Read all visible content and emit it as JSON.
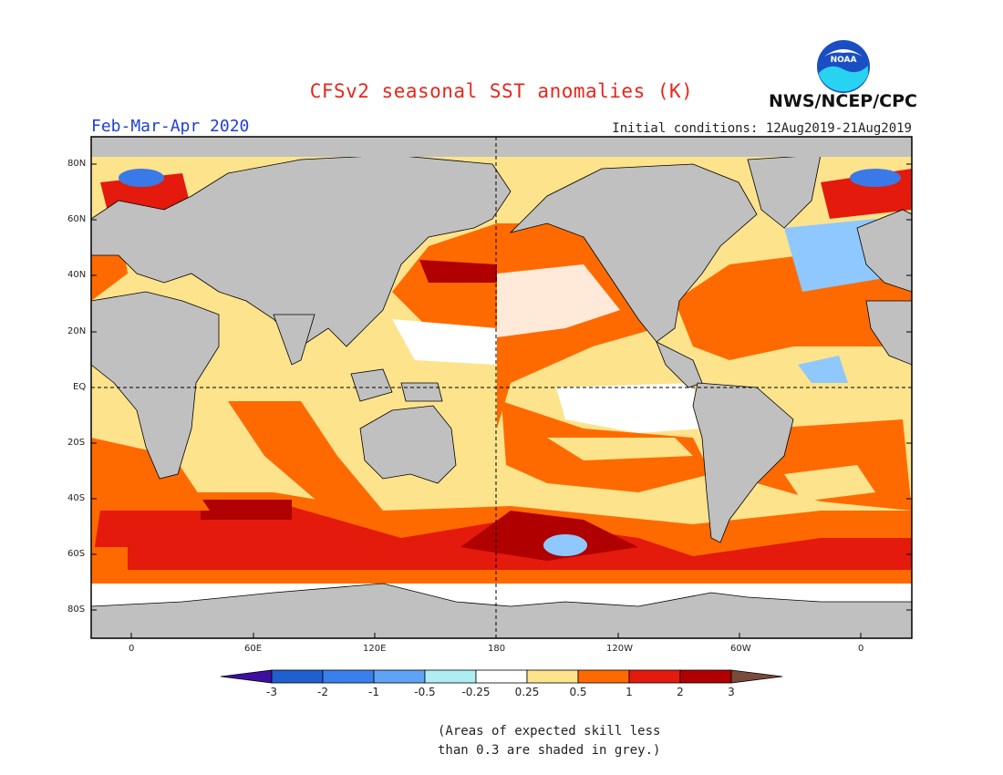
{
  "header": {
    "title": "CFSv2 seasonal SST anomalies (K)",
    "season": "Feb-Mar-Apr 2020",
    "initial_conditions": "Initial conditions: 12Aug2019-21Aug2019",
    "agency": "NWS/NCEP/CPC",
    "logo_text": "NOAA"
  },
  "map": {
    "lat_labels": [
      "80N",
      "60N",
      "40N",
      "20N",
      "EQ",
      "20S",
      "40S",
      "60S",
      "80S"
    ],
    "lon_labels": [
      "0",
      "60E",
      "120E",
      "180",
      "120W",
      "60W",
      "0"
    ],
    "colors": {
      "land": "#c0c0c0",
      "near_zero": "#ffffff",
      "pale_yellow": "#fde38c",
      "orange": "#ff6a00",
      "red": "#e31a0c",
      "dark_red": "#b00000",
      "light_blue": "#8ec8ff",
      "blue": "#3a7ae8"
    }
  },
  "colorbar": {
    "tick_labels": [
      "-3",
      "-2",
      "-1",
      "-0.5",
      "-0.25",
      "0.25",
      "0.5",
      "1",
      "2",
      "3"
    ],
    "colors": [
      "#3e0fa0",
      "#1f5fd0",
      "#3a80ec",
      "#5fa3f5",
      "#aeeef2",
      "#ffffff",
      "#fde38c",
      "#ff6a00",
      "#e31a0c",
      "#b00000",
      "#7a4a3a"
    ]
  },
  "note": {
    "line1": "(Areas of expected skill less",
    "line2": "than 0.3 are shaded in grey.)"
  }
}
